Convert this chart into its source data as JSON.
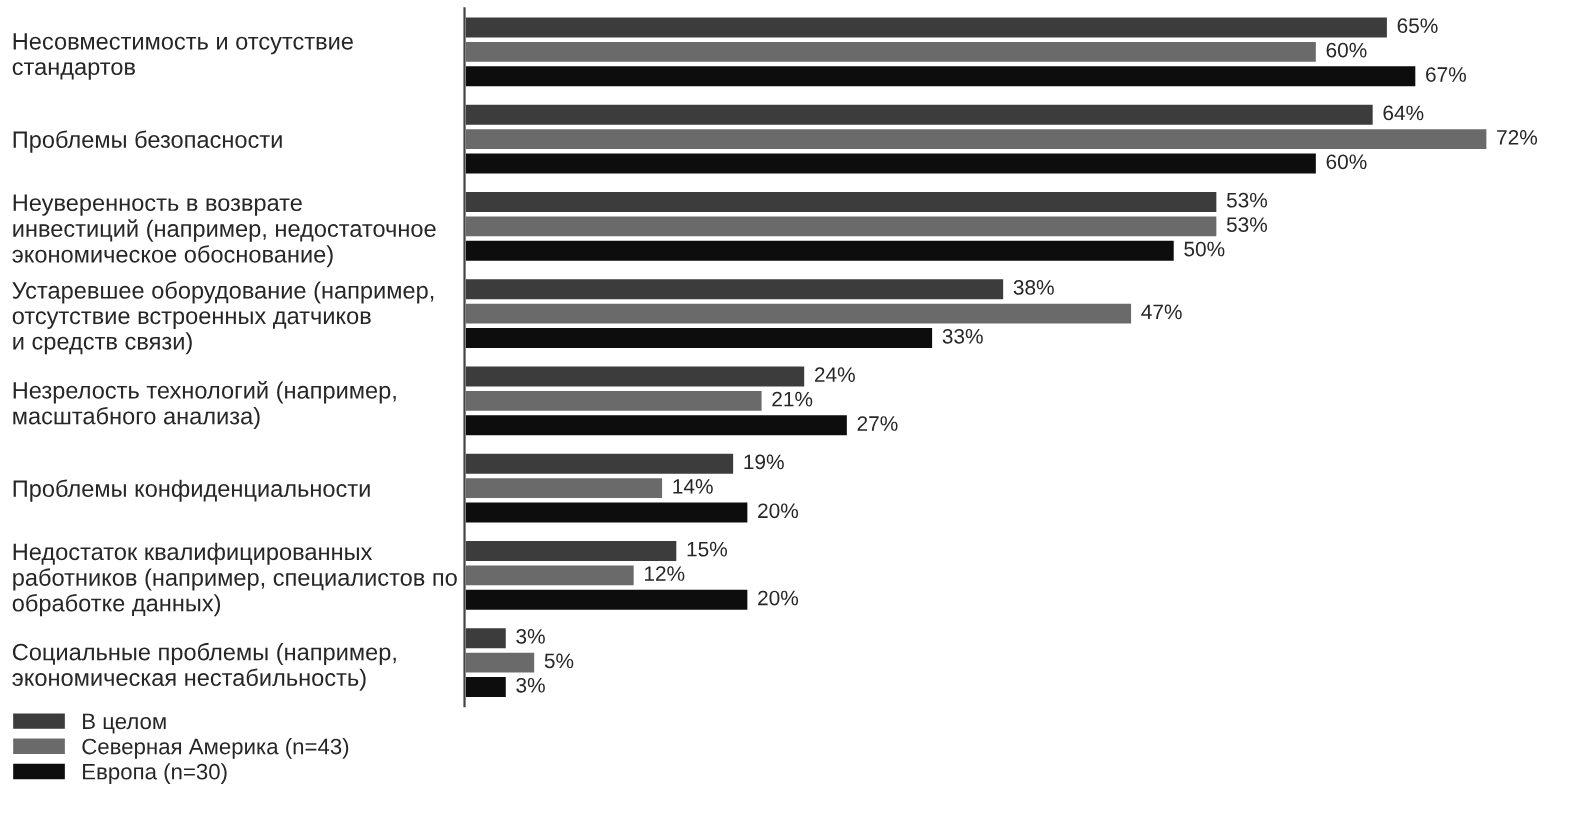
{
  "chart_data": {
    "type": "bar",
    "orientation": "horizontal",
    "legend": "bottom left",
    "grid": false,
    "categories": [
      "Несовместимость и отсутствие\nстандартов",
      "Проблемы безопасности",
      "Неуверенность в возврате\nинвестиций (например, недостаточное\nэкономическое обоснование)",
      "Устаревшее оборудование (например,\nотсутствие встроенных датчиков\nи средств связи)",
      "Незрелость технологий (например,\nмасштабного анализа)",
      "Проблемы конфиденциальности",
      "Недостаток квалифицированных\nработников (например, специалистов по\nобработке данных)",
      "Социальные проблемы (например,\nэкономическая нестабильность)"
    ],
    "series": [
      {
        "name": "В целом",
        "color": "#3c3c3c",
        "values": [
          65,
          64,
          53,
          38,
          24,
          19,
          15,
          3
        ],
        "value_labels": [
          "65%",
          "64%",
          "53%",
          "38%",
          "24%",
          "19%",
          "15%",
          "3%"
        ]
      },
      {
        "name": "Северная Америка (n=43)",
        "color": "#6a6a6a",
        "values": [
          60,
          72,
          53,
          47,
          21,
          14,
          12,
          5
        ],
        "value_labels": [
          "60%",
          "72%",
          "53%",
          "47%",
          "21%",
          "14%",
          "12%",
          "5%"
        ]
      },
      {
        "name": "Европа (n=30)",
        "color": "#0d0d0d",
        "values": [
          67,
          60,
          50,
          33,
          27,
          20,
          20,
          3
        ],
        "value_labels": [
          "67%",
          "60%",
          "50%",
          "33%",
          "27%",
          "20%",
          "20%",
          "3%"
        ]
      }
    ]
  }
}
